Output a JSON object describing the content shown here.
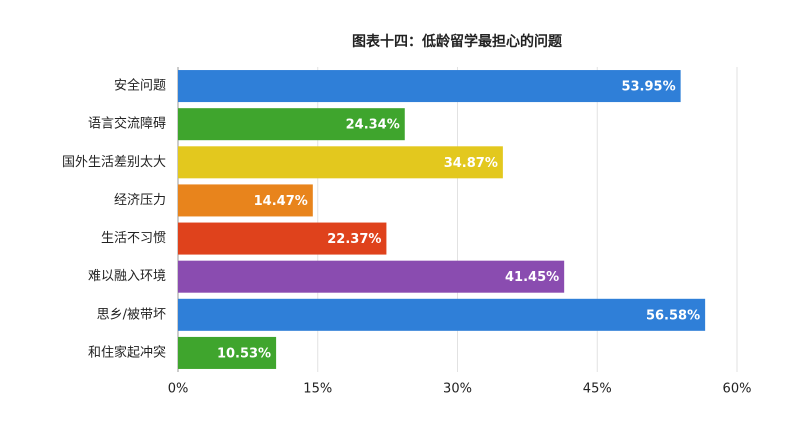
{
  "chart_data": {
    "type": "barh",
    "title": "图表十四：低龄留学最担心的问题",
    "categories": [
      "安全问题",
      "语言交流障碍",
      "国外生活差别太大",
      "经济压力",
      "生活不习惯",
      "难以融入环境",
      "思乡/被带坏",
      "和住家起冲突"
    ],
    "values": [
      53.95,
      24.34,
      34.87,
      14.47,
      22.37,
      41.45,
      56.58,
      10.53
    ],
    "value_labels": [
      "53.95%",
      "24.34%",
      "34.87%",
      "14.47%",
      "22.37%",
      "41.45%",
      "56.58%",
      "10.53%"
    ],
    "colors": [
      "#2f7fd8",
      "#3fa52d",
      "#e3c81e",
      "#e8841c",
      "#df421c",
      "#8a4cb0",
      "#2f7fd8",
      "#3fa52d"
    ],
    "xlim": [
      0,
      60
    ],
    "xticks": [
      {
        "value": 0,
        "label": "0%"
      },
      {
        "value": 15,
        "label": "15%"
      },
      {
        "value": 30,
        "label": "30%"
      },
      {
        "value": 45,
        "label": "45%"
      },
      {
        "value": 60,
        "label": "60%"
      }
    ],
    "grid": true
  }
}
